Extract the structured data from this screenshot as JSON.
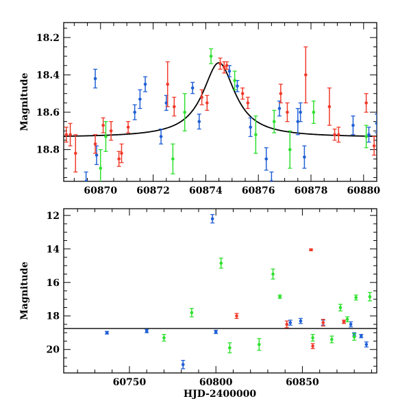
{
  "chart_data": [
    {
      "type": "scatter",
      "panel": "top",
      "title": "",
      "xlabel": "",
      "ylabel": "Magnitude",
      "xlim": [
        60868.6,
        60880.5
      ],
      "ylim": [
        18.97,
        18.12
      ],
      "y_inverted": true,
      "grid": false,
      "xticks": [
        60870,
        60872,
        60874,
        60876,
        60878,
        60880
      ],
      "yticks": [
        18.2,
        18.4,
        18.6,
        18.8
      ],
      "model_curve": {
        "kind": "lorentzian",
        "baseline": 18.735,
        "peak_mag": 18.335,
        "t0": 60874.5,
        "half_width": 0.75,
        "color": "#000000"
      },
      "series": [
        {
          "color": "#1f5fd6",
          "points": [
            [
              60869.8,
              18.42,
              0.05
            ],
            [
              60869.85,
              18.83,
              0.05
            ],
            [
              60869.45,
              18.97,
              0.05
            ],
            [
              60871.3,
              18.6,
              0.04
            ],
            [
              60871.5,
              18.53,
              0.05
            ],
            [
              60871.7,
              18.45,
              0.04
            ],
            [
              60872.3,
              18.73,
              0.04
            ],
            [
              60872.5,
              18.55,
              0.04
            ],
            [
              60873.5,
              18.47,
              0.03
            ],
            [
              60873.75,
              18.65,
              0.04
            ],
            [
              60874.9,
              18.38,
              0.03
            ],
            [
              60875.2,
              18.46,
              0.03
            ],
            [
              60875.7,
              18.68,
              0.05
            ],
            [
              60876.3,
              18.85,
              0.06
            ],
            [
              60876.5,
              18.97,
              0.05
            ],
            [
              60876.8,
              18.58,
              0.04
            ],
            [
              60877.5,
              18.65,
              0.07
            ],
            [
              60877.6,
              18.6,
              0.05
            ],
            [
              60877.75,
              18.84,
              0.06
            ],
            [
              60879.6,
              18.67,
              0.05
            ],
            [
              60880.2,
              18.72,
              0.04
            ],
            [
              60880.5,
              18.66,
              0.05
            ]
          ]
        },
        {
          "color": "#2ee02e",
          "points": [
            [
              60870.0,
              18.9,
              0.1
            ],
            [
              60870.2,
              18.73,
              0.08
            ],
            [
              60872.75,
              18.85,
              0.08
            ],
            [
              60873.2,
              18.6,
              0.1
            ],
            [
              60874.2,
              18.3,
              0.04
            ],
            [
              60875.1,
              18.43,
              0.05
            ],
            [
              60875.9,
              18.72,
              0.1
            ],
            [
              60876.6,
              18.65,
              0.06
            ],
            [
              60877.2,
              18.8,
              0.1
            ],
            [
              60878.1,
              18.6,
              0.06
            ],
            [
              60880.1,
              18.73,
              0.06
            ]
          ]
        },
        {
          "color": "#f03a2a",
          "points": [
            [
              60868.7,
              18.72,
              0.04
            ],
            [
              60868.85,
              18.72,
              0.06
            ],
            [
              60869.05,
              18.82,
              0.1
            ],
            [
              60869.8,
              18.77,
              0.05
            ],
            [
              60870.1,
              18.67,
              0.04
            ],
            [
              60870.4,
              18.7,
              0.05
            ],
            [
              60870.7,
              18.85,
              0.04
            ],
            [
              60870.8,
              18.82,
              0.05
            ],
            [
              60871.05,
              18.68,
              0.03
            ],
            [
              60872.55,
              18.45,
              0.12
            ],
            [
              60872.8,
              18.57,
              0.05
            ],
            [
              60873.85,
              18.52,
              0.04
            ],
            [
              60874.05,
              18.55,
              0.04
            ],
            [
              60874.55,
              18.34,
              0.03
            ],
            [
              60874.7,
              18.36,
              0.03
            ],
            [
              60874.8,
              18.35,
              0.02
            ],
            [
              60875.4,
              18.5,
              0.03
            ],
            [
              60875.6,
              18.55,
              0.03
            ],
            [
              60876.85,
              18.5,
              0.05
            ],
            [
              60877.1,
              18.6,
              0.05
            ],
            [
              60877.8,
              18.4,
              0.15
            ],
            [
              60878.7,
              18.57,
              0.1
            ],
            [
              60878.9,
              18.72,
              0.03
            ],
            [
              60879.05,
              18.72,
              0.04
            ],
            [
              60880.1,
              18.55,
              0.05
            ],
            [
              60880.4,
              18.78,
              0.05
            ]
          ]
        }
      ]
    },
    {
      "type": "scatter",
      "panel": "bottom",
      "title": "",
      "xlabel": "HJD-2400000",
      "ylabel": "Magnitude",
      "xlim": [
        60712,
        60893
      ],
      "ylim": [
        21.4,
        11.6
      ],
      "y_inverted": true,
      "grid": false,
      "xticks": [
        60750,
        60800,
        60850
      ],
      "yticks": [
        12,
        14,
        16,
        18,
        20
      ],
      "reference_line": {
        "y": 18.75,
        "color": "#000000"
      },
      "series": [
        {
          "color": "#1f5fd6",
          "points": [
            [
              60798.0,
              12.2,
              0.25
            ],
            [
              60781.0,
              20.9,
              0.25
            ],
            [
              60887.0,
              19.7,
              0.15
            ],
            [
              60737.0,
              19.0,
              0.08
            ],
            [
              60760.0,
              18.9,
              0.1
            ],
            [
              60800.0,
              18.95,
              0.1
            ],
            [
              60843.0,
              18.4,
              0.15
            ],
            [
              60849.0,
              18.3,
              0.15
            ],
            [
              60862.0,
              18.4,
              0.15
            ],
            [
              60878.0,
              18.5,
              0.15
            ],
            [
              60880.0,
              19.1,
              0.1
            ],
            [
              60884.0,
              19.2,
              0.1
            ]
          ]
        },
        {
          "color": "#2ee02e",
          "points": [
            [
              60803.0,
              14.85,
              0.3
            ],
            [
              60833.0,
              15.5,
              0.3
            ],
            [
              60837.0,
              16.85,
              0.1
            ],
            [
              60889.0,
              16.85,
              0.25
            ],
            [
              60881.0,
              16.9,
              0.15
            ],
            [
              60786.0,
              17.8,
              0.25
            ],
            [
              60770.0,
              19.3,
              0.2
            ],
            [
              60825.0,
              19.7,
              0.35
            ],
            [
              60808.0,
              19.9,
              0.3
            ],
            [
              60856.0,
              19.3,
              0.2
            ],
            [
              60867.0,
              19.4,
              0.2
            ],
            [
              60872.0,
              17.5,
              0.2
            ],
            [
              60880.0,
              19.25,
              0.2
            ],
            [
              60876.0,
              18.2,
              0.15
            ]
          ]
        },
        {
          "color": "#f03a2a",
          "points": [
            [
              60855.0,
              14.05,
              0.05
            ],
            [
              60812.0,
              18.0,
              0.15
            ],
            [
              60856.0,
              19.8,
              0.15
            ],
            [
              60841.0,
              18.5,
              0.2
            ],
            [
              60862.0,
              18.4,
              0.2
            ],
            [
              60874.0,
              18.35,
              0.1
            ]
          ]
        }
      ]
    }
  ]
}
